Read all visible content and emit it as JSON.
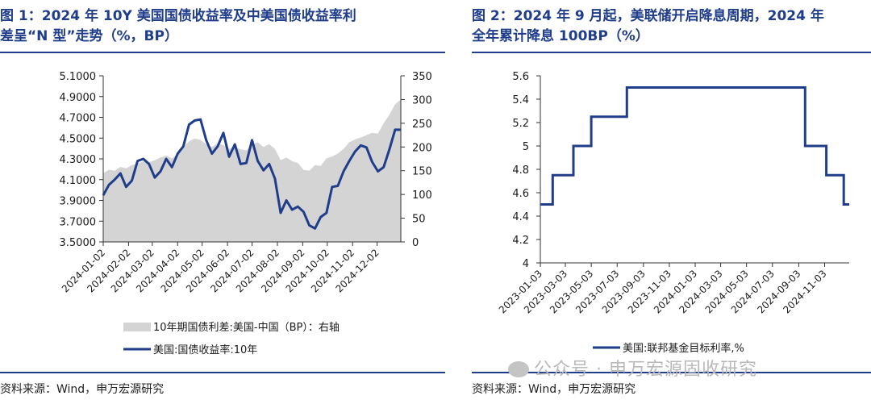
{
  "panel1": {
    "title_line1": "图 1：2024 年 10Y 美国国债收益率及中美国债收益率利",
    "title_line2": "差呈“N 型”走势（%，BP）",
    "source": "资料来源：Wind，申万宏源研究"
  },
  "panel2": {
    "title_line1": "图 2：2024 年 9 月起，美联储开启降息周期，2024 年",
    "title_line2": "全年累计降息 100BP（%）",
    "source": "资料来源：Wind，申万宏源研究"
  },
  "watermark": "公众号 · 申万宏源固收研究",
  "chart_data": [
    {
      "type": "area",
      "legend_placement": "bottom",
      "grid": false,
      "x_ticks": [
        "2024-01-02",
        "2024-02-02",
        "2024-03-02",
        "2024-04-02",
        "2024-05-02",
        "2024-06-02",
        "2024-07-02",
        "2024-08-02",
        "2024-09-02",
        "2024-10-02",
        "2024-11-02",
        "2024-12-02"
      ],
      "y_left_ticks": [
        "5.1000",
        "4.9000",
        "4.7000",
        "4.5000",
        "4.3000",
        "4.1000",
        "3.9000",
        "3.7000",
        "3.5000"
      ],
      "y_right_ticks": [
        "350",
        "300",
        "250",
        "200",
        "150",
        "100",
        "50",
        "0"
      ],
      "ylim_left": [
        3.5,
        5.1
      ],
      "ylim_right": [
        0,
        350
      ],
      "colors": {
        "area": "#d4d4d4",
        "line": "#1f3d8a"
      },
      "series": [
        {
          "name": "10年期国债利差:美国-中国（BP）：右轴",
          "type": "area",
          "axis": "right",
          "x": [
            "2024-01-02",
            "2024-01-09",
            "2024-01-16",
            "2024-01-23",
            "2024-01-30",
            "2024-02-06",
            "2024-02-13",
            "2024-02-20",
            "2024-02-27",
            "2024-03-05",
            "2024-03-12",
            "2024-03-19",
            "2024-03-26",
            "2024-04-02",
            "2024-04-09",
            "2024-04-16",
            "2024-04-23",
            "2024-04-30",
            "2024-05-07",
            "2024-05-14",
            "2024-05-21",
            "2024-05-28",
            "2024-06-04",
            "2024-06-11",
            "2024-06-18",
            "2024-06-25",
            "2024-07-02",
            "2024-07-09",
            "2024-07-16",
            "2024-07-23",
            "2024-07-30",
            "2024-08-06",
            "2024-08-13",
            "2024-08-20",
            "2024-08-27",
            "2024-09-03",
            "2024-09-10",
            "2024-09-17",
            "2024-09-24",
            "2024-10-01",
            "2024-10-08",
            "2024-10-15",
            "2024-10-22",
            "2024-10-29",
            "2024-11-05",
            "2024-11-12",
            "2024-11-19",
            "2024-11-26",
            "2024-12-03",
            "2024-12-10",
            "2024-12-17",
            "2024-12-24",
            "2024-12-31"
          ],
          "values": [
            145,
            152,
            150,
            158,
            155,
            162,
            165,
            170,
            168,
            172,
            178,
            182,
            176,
            186,
            200,
            212,
            218,
            215,
            206,
            200,
            208,
            204,
            196,
            200,
            195,
            193,
            205,
            210,
            200,
            206,
            196,
            172,
            178,
            170,
            166,
            152,
            150,
            162,
            160,
            176,
            180,
            186,
            196,
            210,
            216,
            220,
            225,
            230,
            228,
            250,
            268,
            290,
            300
          ]
        },
        {
          "name": "美国:国债收益率:10年",
          "type": "line",
          "axis": "left",
          "x": [
            "2024-01-02",
            "2024-01-09",
            "2024-01-16",
            "2024-01-23",
            "2024-01-30",
            "2024-02-06",
            "2024-02-13",
            "2024-02-20",
            "2024-02-27",
            "2024-03-05",
            "2024-03-12",
            "2024-03-19",
            "2024-03-26",
            "2024-04-02",
            "2024-04-09",
            "2024-04-16",
            "2024-04-23",
            "2024-04-30",
            "2024-05-07",
            "2024-05-14",
            "2024-05-21",
            "2024-05-28",
            "2024-06-04",
            "2024-06-11",
            "2024-06-18",
            "2024-06-25",
            "2024-07-02",
            "2024-07-09",
            "2024-07-16",
            "2024-07-23",
            "2024-07-30",
            "2024-08-06",
            "2024-08-13",
            "2024-08-20",
            "2024-08-27",
            "2024-09-03",
            "2024-09-10",
            "2024-09-17",
            "2024-09-24",
            "2024-10-01",
            "2024-10-08",
            "2024-10-15",
            "2024-10-22",
            "2024-10-29",
            "2024-11-05",
            "2024-11-12",
            "2024-11-19",
            "2024-11-26",
            "2024-12-03",
            "2024-12-10",
            "2024-12-17",
            "2024-12-24",
            "2024-12-31"
          ],
          "values": [
            3.95,
            4.05,
            4.1,
            4.16,
            4.03,
            4.09,
            4.28,
            4.3,
            4.25,
            4.12,
            4.18,
            4.3,
            4.22,
            4.35,
            4.42,
            4.63,
            4.67,
            4.68,
            4.48,
            4.35,
            4.42,
            4.55,
            4.32,
            4.44,
            4.25,
            4.26,
            4.48,
            4.28,
            4.19,
            4.25,
            4.11,
            3.78,
            3.9,
            3.81,
            3.84,
            3.79,
            3.66,
            3.63,
            3.74,
            3.78,
            4.03,
            4.04,
            4.18,
            4.28,
            4.37,
            4.43,
            4.41,
            4.27,
            4.18,
            4.22,
            4.39,
            4.58,
            4.58
          ]
        }
      ]
    },
    {
      "type": "line",
      "legend_placement": "bottom",
      "grid": false,
      "x_ticks": [
        "2023-01-03",
        "2023-03-03",
        "2023-05-03",
        "2023-07-03",
        "2023-09-03",
        "2023-11-03",
        "2024-01-03",
        "2024-03-03",
        "2024-05-03",
        "2024-07-03",
        "2024-09-03",
        "2024-11-03"
      ],
      "y_ticks": [
        "5.6",
        "5.4",
        "5.2",
        "5",
        "4.8",
        "4.6",
        "4.4",
        "4.2",
        "4"
      ],
      "ylim": [
        4,
        5.6
      ],
      "colors": {
        "line": "#1f3d8a"
      },
      "series": [
        {
          "name": "美国:联邦基金目标利率,%",
          "step": true,
          "x": [
            "2023-01-03",
            "2023-02-01",
            "2023-03-22",
            "2023-05-03",
            "2023-07-26",
            "2024-09-18",
            "2024-11-07",
            "2024-12-18",
            "2024-12-31"
          ],
          "values": [
            4.5,
            4.75,
            5.0,
            5.25,
            5.5,
            5.0,
            4.75,
            4.5,
            4.5
          ]
        }
      ]
    }
  ]
}
